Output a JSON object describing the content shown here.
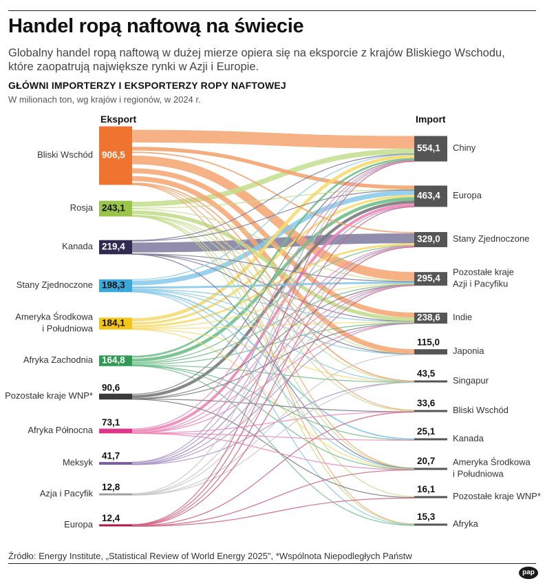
{
  "title": "Handel ropą naftową na świecie",
  "subtitle": "Globalny handel ropą naftową w dużej mierze opiera się na eksporcie z krajów Bliskiego Wschodu, które zaopatrują największe rynki w Azji i Europie.",
  "chart_heading": "GŁÓWNI IMPORTERZY I EKSPORTERZY ROPY NAFTOWEJ",
  "chart_units": "W milionach ton, wg krajów i regionów, w 2024 r.",
  "source": "Źródło: Energy Institute, „Statistical Review of World Energy 2025\", *Wspólnota Niepodległych Państw",
  "brand": "pap",
  "chart_data": {
    "type": "sankey",
    "exporters_label": "Eksport",
    "importers_label": "Import",
    "exporters": [
      {
        "name": "Bliski Wschód",
        "value": 906.5,
        "value_label": "906,5",
        "color": "#ef7430",
        "flow_color": "#f4a46f"
      },
      {
        "name": "Rosja",
        "value": 243.1,
        "value_label": "243,1",
        "color": "#9bc54a",
        "flow_color": "#c3de8c"
      },
      {
        "name": "Kanada",
        "value": 219.4,
        "value_label": "219,4",
        "color": "#2e2a52",
        "flow_color": "#7d7a9d"
      },
      {
        "name": "Stany Zjednoczone",
        "value": 198.3,
        "value_label": "198,3",
        "color": "#3aa8d8",
        "flow_color": "#86c9ea"
      },
      {
        "name": "Ameryka Środkowa\ni Południowa",
        "value": 184.1,
        "value_label": "184,1",
        "color": "#f5c518",
        "flow_color": "#f7dc6f"
      },
      {
        "name": "Afryka Zachodnia",
        "value": 164.8,
        "value_label": "164,8",
        "color": "#2e9a53",
        "flow_color": "#6fbf8a"
      },
      {
        "name": "Pozostałe kraje WNP*",
        "value": 90.6,
        "value_label": "90,6",
        "color": "#3a3a3a",
        "flow_color": "#7a7a7a"
      },
      {
        "name": "Afryka Północna",
        "value": 73.1,
        "value_label": "73,1",
        "color": "#e0338a",
        "flow_color": "#ee85b8"
      },
      {
        "name": "Meksyk",
        "value": 41.7,
        "value_label": "41,7",
        "color": "#7b5aa6",
        "flow_color": "#ab95c8"
      },
      {
        "name": "Azja i Pacyfik",
        "value": 12.8,
        "value_label": "12,8",
        "color": "#a0a0a0",
        "flow_color": "#c8c8c8"
      },
      {
        "name": "Europa",
        "value": 12.4,
        "value_label": "12,4",
        "color": "#b0124a",
        "flow_color": "#d1607f"
      }
    ],
    "importers": [
      {
        "name": "Chiny",
        "value": 554.1,
        "value_label": "554,1"
      },
      {
        "name": "Europa",
        "value": 463.4,
        "value_label": "463,4"
      },
      {
        "name": "Stany Zjednoczone",
        "value": 329.0,
        "value_label": "329,0"
      },
      {
        "name": "Pozostałe kraje\nAzji i Pacyfiku",
        "value": 295.4,
        "value_label": "295,4"
      },
      {
        "name": "Indie",
        "value": 238.6,
        "value_label": "238,6"
      },
      {
        "name": "Japonia",
        "value": 115.0,
        "value_label": "115,0"
      },
      {
        "name": "Singapur",
        "value": 43.5,
        "value_label": "43,5"
      },
      {
        "name": "Bliski Wschód",
        "value": 33.6,
        "value_label": "33,6"
      },
      {
        "name": "Kanada",
        "value": 25.1,
        "value_label": "25,1"
      },
      {
        "name": "Ameryka Środkowa\ni Południowa",
        "value": 20.7,
        "value_label": "20,7"
      },
      {
        "name": "Pozostałe kraje WNP*",
        "value": 16.1,
        "value_label": "16,1"
      },
      {
        "name": "Afryka",
        "value": 15.3,
        "value_label": "15,3"
      }
    ],
    "node_color_importers": "#555555",
    "flows": [
      {
        "from": "Bliski Wschód",
        "to": "Chiny",
        "value": 270
      },
      {
        "from": "Bliski Wschód",
        "to": "Europa",
        "value": 75
      },
      {
        "from": "Bliski Wschód",
        "to": "Stany Zjednoczone",
        "value": 25
      },
      {
        "from": "Bliski Wschód",
        "to": "Pozostałe kraje\nAzji i Pacyfiku",
        "value": 185
      },
      {
        "from": "Bliski Wschód",
        "to": "Indie",
        "value": 115
      },
      {
        "from": "Bliski Wschód",
        "to": "Japonia",
        "value": 100
      },
      {
        "from": "Bliski Wschód",
        "to": "Singapur",
        "value": 25
      },
      {
        "from": "Bliski Wschód",
        "to": "Bliski Wschód",
        "value": 3
      },
      {
        "from": "Bliski Wschód",
        "to": "Ameryka Środkowa\ni Południowa",
        "value": 3
      },
      {
        "from": "Bliski Wschód",
        "to": "Afryka",
        "value": 5.5
      },
      {
        "from": "Rosja",
        "to": "Chiny",
        "value": 108
      },
      {
        "from": "Rosja",
        "to": "Europa",
        "value": 12
      },
      {
        "from": "Rosja",
        "to": "Pozostałe kraje\nAzji i Pacyfiku",
        "value": 15
      },
      {
        "from": "Rosja",
        "to": "Indie",
        "value": 88
      },
      {
        "from": "Rosja",
        "to": "Japonia",
        "value": 1
      },
      {
        "from": "Rosja",
        "to": "Singapur",
        "value": 2
      },
      {
        "from": "Rosja",
        "to": "Bliski Wschód",
        "value": 8
      },
      {
        "from": "Rosja",
        "to": "Ameryka Środkowa\ni Południowa",
        "value": 2
      },
      {
        "from": "Rosja",
        "to": "Pozostałe kraje WNP*",
        "value": 5
      },
      {
        "from": "Rosja",
        "to": "Afryka",
        "value": 2
      },
      {
        "from": "Kanada",
        "to": "Chiny",
        "value": 12
      },
      {
        "from": "Kanada",
        "to": "Europa",
        "value": 5
      },
      {
        "from": "Kanada",
        "to": "Stany Zjednoczone",
        "value": 195
      },
      {
        "from": "Kanada",
        "to": "Pozostałe kraje\nAzji i Pacyfiku",
        "value": 3
      },
      {
        "from": "Kanada",
        "to": "Indie",
        "value": 2
      },
      {
        "from": "Kanada",
        "to": "Japonia",
        "value": 1
      },
      {
        "from": "Kanada",
        "to": "Ameryka Środkowa\ni Południowa",
        "value": 1.4
      },
      {
        "from": "Stany Zjednoczone",
        "to": "Chiny",
        "value": 10
      },
      {
        "from": "Stany Zjednoczone",
        "to": "Europa",
        "value": 95
      },
      {
        "from": "Stany Zjednoczone",
        "to": "Pozostałe kraje\nAzji i Pacyfiku",
        "value": 42
      },
      {
        "from": "Stany Zjednoczone",
        "to": "Indie",
        "value": 10
      },
      {
        "from": "Stany Zjednoczone",
        "to": "Japonia",
        "value": 3
      },
      {
        "from": "Stany Zjednoczone",
        "to": "Singapur",
        "value": 8
      },
      {
        "from": "Stany Zjednoczone",
        "to": "Kanada",
        "value": 20
      },
      {
        "from": "Stany Zjednoczone",
        "to": "Ameryka Środkowa\ni Południowa",
        "value": 5
      },
      {
        "from": "Stany Zjednoczone",
        "to": "Afryka",
        "value": 5.3
      },
      {
        "from": "Ameryka Środkowa\ni Południowa",
        "to": "Chiny",
        "value": 70
      },
      {
        "from": "Ameryka Środkowa\ni Południowa",
        "to": "Europa",
        "value": 45
      },
      {
        "from": "Ameryka Środkowa\ni Południowa",
        "to": "Stany Zjednoczone",
        "value": 40
      },
      {
        "from": "Ameryka Środkowa\ni Południowa",
        "to": "Pozostałe kraje\nAzji i Pacyfiku",
        "value": 10
      },
      {
        "from": "Ameryka Środkowa\ni Południowa",
        "to": "Indie",
        "value": 10
      },
      {
        "from": "Ameryka Środkowa\ni Południowa",
        "to": "Singapur",
        "value": 3
      },
      {
        "from": "Ameryka Środkowa\ni Południowa",
        "to": "Ameryka Środkowa\ni Południowa",
        "value": 6.1
      },
      {
        "from": "Afryka Zachodnia",
        "to": "Chiny",
        "value": 40
      },
      {
        "from": "Afryka Zachodnia",
        "to": "Europa",
        "value": 65
      },
      {
        "from": "Afryka Zachodnia",
        "to": "Stany Zjednoczone",
        "value": 10
      },
      {
        "from": "Afryka Zachodnia",
        "to": "Pozostałe kraje\nAzji i Pacyfiku",
        "value": 15
      },
      {
        "from": "Afryka Zachodnia",
        "to": "Indie",
        "value": 20
      },
      {
        "from": "Afryka Zachodnia",
        "to": "Singapur",
        "value": 2
      },
      {
        "from": "Afryka Zachodnia",
        "to": "Kanada",
        "value": 4
      },
      {
        "from": "Afryka Zachodnia",
        "to": "Ameryka Środkowa\ni Południowa",
        "value": 3
      },
      {
        "from": "Afryka Zachodnia",
        "to": "Afryka",
        "value": 5.8
      },
      {
        "from": "Pozostałe kraje WNP*",
        "to": "Chiny",
        "value": 15
      },
      {
        "from": "Pozostałe kraje WNP*",
        "to": "Europa",
        "value": 60
      },
      {
        "from": "Pozostałe kraje WNP*",
        "to": "Pozostałe kraje\nAzji i Pacyfiku",
        "value": 5
      },
      {
        "from": "Pozostałe kraje WNP*",
        "to": "Indie",
        "value": 3
      },
      {
        "from": "Pozostałe kraje WNP*",
        "to": "Bliski Wschód",
        "value": 1
      },
      {
        "from": "Pozostałe kraje WNP*",
        "to": "Pozostałe kraje WNP*",
        "value": 6.6
      },
      {
        "from": "Afryka Północna",
        "to": "Chiny",
        "value": 8
      },
      {
        "from": "Afryka Północna",
        "to": "Europa",
        "value": 55
      },
      {
        "from": "Afryka Północna",
        "to": "Stany Zjednoczone",
        "value": 3
      },
      {
        "from": "Afryka Północna",
        "to": "Pozostałe kraje\nAzji i Pacyfiku",
        "value": 2
      },
      {
        "from": "Afryka Północna",
        "to": "Indie",
        "value": 2
      },
      {
        "from": "Afryka Północna",
        "to": "Bliski Wschód",
        "value": 1
      },
      {
        "from": "Afryka Północna",
        "to": "Kanada",
        "value": 1
      },
      {
        "from": "Afryka Północna",
        "to": "Ameryka Środkowa\ni Południowa",
        "value": 1.1
      },
      {
        "from": "Meksyk",
        "to": "Chiny",
        "value": 3
      },
      {
        "from": "Meksyk",
        "to": "Europa",
        "value": 12
      },
      {
        "from": "Meksyk",
        "to": "Stany Zjednoczone",
        "value": 20
      },
      {
        "from": "Meksyk",
        "to": "Pozostałe kraje\nAzji i Pacyfiku",
        "value": 3
      },
      {
        "from": "Meksyk",
        "to": "Indie",
        "value": 3
      },
      {
        "from": "Meksyk",
        "to": "Singapur",
        "value": 0.7
      },
      {
        "from": "Azja i Pacyfik",
        "to": "Chiny",
        "value": 5
      },
      {
        "from": "Azja i Pacyfik",
        "to": "Stany Zjednoczone",
        "value": 1
      },
      {
        "from": "Azja i Pacyfik",
        "to": "Pozostałe kraje\nAzji i Pacyfiku",
        "value": 4
      },
      {
        "from": "Azja i Pacyfik",
        "to": "Japonia",
        "value": 1
      },
      {
        "from": "Azja i Pacyfik",
        "to": "Singapur",
        "value": 1.8
      },
      {
        "from": "Europa",
        "to": "Chiny",
        "value": 3
      },
      {
        "from": "Europa",
        "to": "Europa",
        "value": 2
      },
      {
        "from": "Europa",
        "to": "Stany Zjednoczone",
        "value": 3
      },
      {
        "from": "Europa",
        "to": "Pozostałe kraje\nAzji i Pacyfiku",
        "value": 1.4
      },
      {
        "from": "Europa",
        "to": "Bliski Wschód",
        "value": 1
      },
      {
        "from": "Europa",
        "to": "Ameryka Środkowa\ni Południowa",
        "value": 1
      },
      {
        "from": "Europa",
        "to": "Pozostałe kraje WNP*",
        "value": 1
      }
    ]
  }
}
